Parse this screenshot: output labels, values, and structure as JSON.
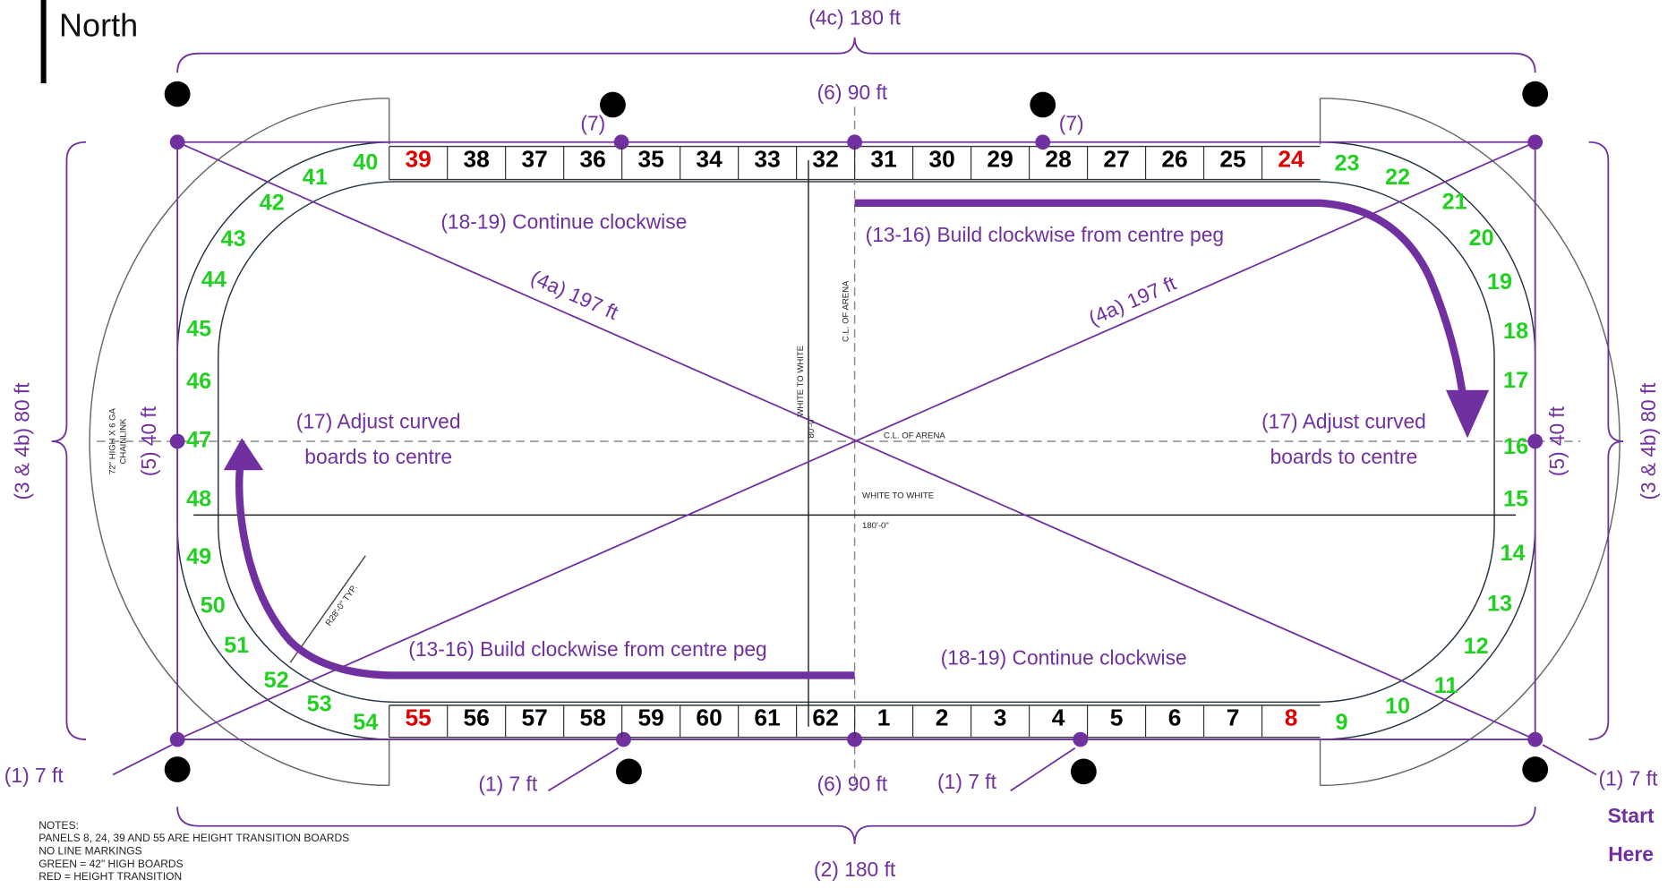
{
  "header": {
    "title": "North"
  },
  "dimensions": {
    "top": "(4c) 180 ft",
    "bottom": "(2) 180 ft",
    "centre_top": "(6) 90 ft",
    "centre_bottom": "(6) 90 ft",
    "quarter_left": "(7)",
    "quarter_right": "(7)",
    "diagonal_1": "(4a) 197 ft",
    "diagonal_2": "(4a) 197 ft",
    "end_left": "(5) 40 ft",
    "end_right": "(5) 40 ft",
    "side_left": "(3 & 4b) 80 ft",
    "side_right": "(3 & 4b) 80 ft",
    "pegs": [
      "(1) 7 ft",
      "(1) 7 ft",
      "(1) 7 ft",
      "(1) 7 ft"
    ]
  },
  "steps": {
    "build_top": "(13-16) Build clockwise from centre peg",
    "build_bottom": "(13-16) Build clockwise from centre peg",
    "continue_top": "(18-19) Continue clockwise",
    "continue_bottom": "(18-19) Continue clockwise",
    "adjust_left": [
      "(17) Adjust curved",
      "boards to centre"
    ],
    "adjust_right": [
      "(17) Adjust curved",
      "boards to centre"
    ],
    "start": [
      "Start",
      "Here"
    ]
  },
  "drawing_labels": {
    "cl_vertical": "C.L. OF ARENA",
    "cl_horizontal": "C.L. OF ARENA",
    "white_vertical": "WHITE TO WHITE",
    "white_vertical_dim": "80'-0\"",
    "white_horizontal": "WHITE TO WHITE",
    "white_horizontal_dim": "180'-0\"",
    "radius": "R28'-0\" TYP.",
    "fence": [
      "72\" HIGH X 6 GA",
      "CHAINLINK"
    ]
  },
  "notes": [
    "NOTES:",
    "PANELS 8, 24, 39 AND 55 ARE HEIGHT TRANSITION BOARDS",
    "NO LINE MARKINGS",
    "GREEN = 42\" HIGH BOARDS",
    "RED = HEIGHT TRANSITION"
  ],
  "panels": {
    "top": [
      {
        "label": "39",
        "color": "red"
      },
      {
        "label": "38",
        "color": "black"
      },
      {
        "label": "37",
        "color": "black"
      },
      {
        "label": "36",
        "color": "black"
      },
      {
        "label": "35",
        "color": "black"
      },
      {
        "label": "34",
        "color": "black"
      },
      {
        "label": "33",
        "color": "black"
      },
      {
        "label": "32",
        "color": "black"
      },
      {
        "label": "31",
        "color": "black"
      },
      {
        "label": "30",
        "color": "black"
      },
      {
        "label": "29",
        "color": "black"
      },
      {
        "label": "28",
        "color": "black"
      },
      {
        "label": "27",
        "color": "black"
      },
      {
        "label": "26",
        "color": "black"
      },
      {
        "label": "25",
        "color": "black"
      },
      {
        "label": "24",
        "color": "red"
      }
    ],
    "bottom": [
      {
        "label": "55",
        "color": "red"
      },
      {
        "label": "56",
        "color": "black"
      },
      {
        "label": "57",
        "color": "black"
      },
      {
        "label": "58",
        "color": "black"
      },
      {
        "label": "59",
        "color": "black"
      },
      {
        "label": "60",
        "color": "black"
      },
      {
        "label": "61",
        "color": "black"
      },
      {
        "label": "62",
        "color": "black"
      },
      {
        "label": "1",
        "color": "black"
      },
      {
        "label": "2",
        "color": "black"
      },
      {
        "label": "3",
        "color": "black"
      },
      {
        "label": "4",
        "color": "black"
      },
      {
        "label": "5",
        "color": "black"
      },
      {
        "label": "6",
        "color": "black"
      },
      {
        "label": "7",
        "color": "black"
      },
      {
        "label": "8",
        "color": "red"
      }
    ],
    "right": [
      "9",
      "10",
      "11",
      "12",
      "13",
      "14",
      "15",
      "16",
      "17",
      "18",
      "19",
      "20",
      "21",
      "22",
      "23"
    ],
    "left": [
      "40",
      "41",
      "42",
      "43",
      "44",
      "45",
      "46",
      "47",
      "48",
      "49",
      "50",
      "51",
      "52",
      "53",
      "54"
    ],
    "curve_color": "green"
  }
}
